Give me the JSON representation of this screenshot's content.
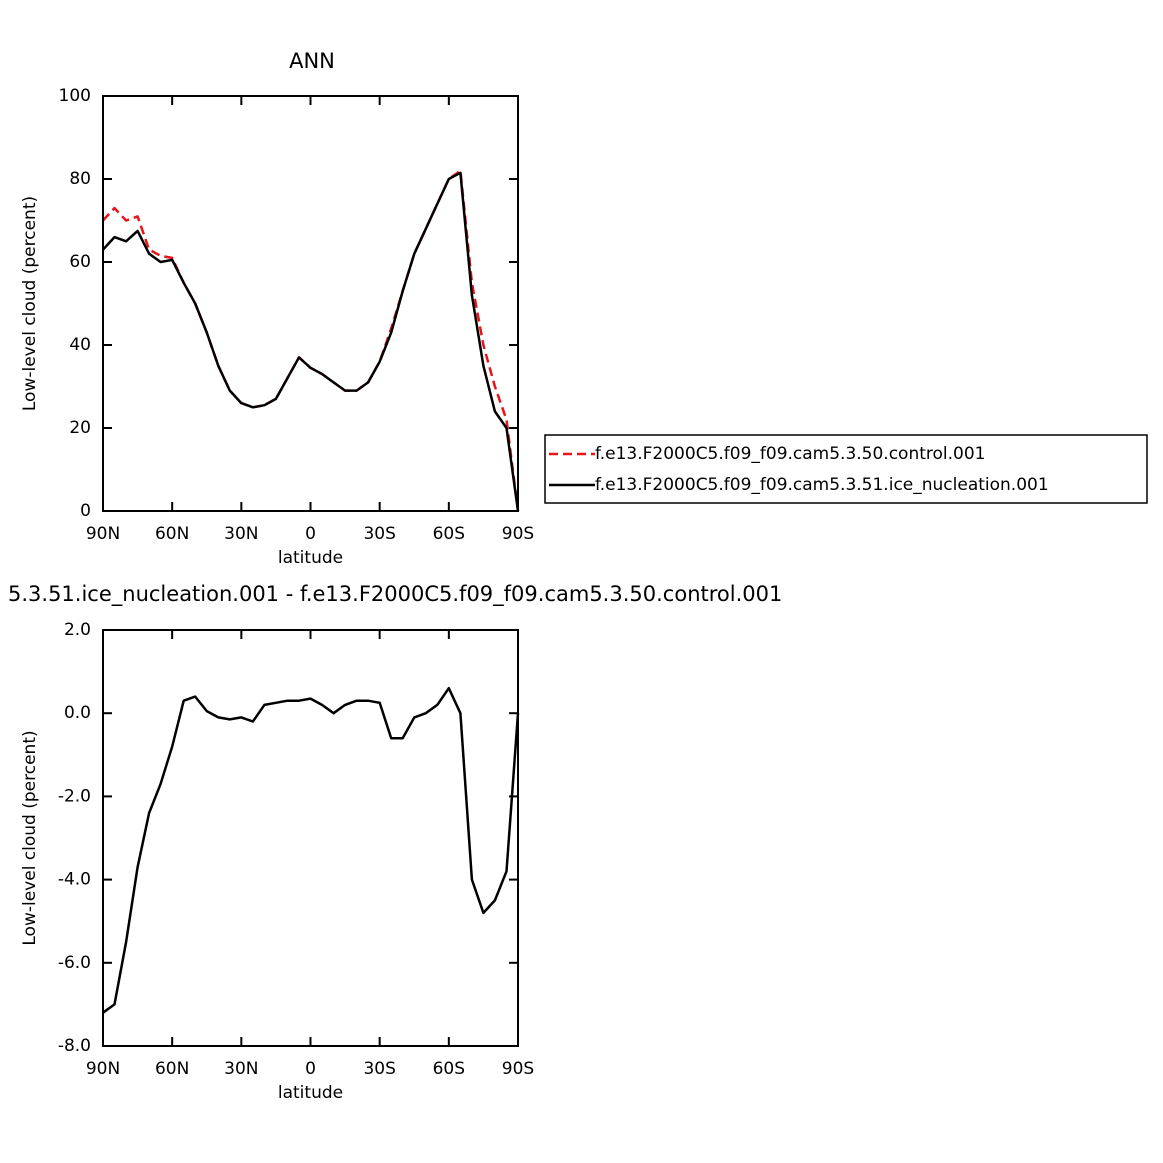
{
  "chart_data": [
    {
      "type": "line",
      "title": "ANN",
      "xlabel": "latitude",
      "ylabel": "Low-level cloud (percent)",
      "x": [
        90,
        85,
        80,
        75,
        70,
        65,
        60,
        55,
        50,
        45,
        40,
        35,
        30,
        25,
        20,
        15,
        10,
        5,
        0,
        -5,
        -10,
        -15,
        -20,
        -25,
        -30,
        -35,
        -40,
        -45,
        -50,
        -55,
        -60,
        -65,
        -70,
        -75,
        -80,
        -85,
        -90
      ],
      "xlim": [
        90,
        -90
      ],
      "xticks": [
        {
          "value": 90,
          "label": "90N"
        },
        {
          "value": 60,
          "label": "60N"
        },
        {
          "value": 30,
          "label": "30N"
        },
        0,
        {
          "value": -30,
          "label": "30S"
        },
        {
          "value": -60,
          "label": "60S"
        },
        {
          "value": -90,
          "label": "90S"
        }
      ],
      "ylim": [
        0,
        100
      ],
      "yticks": [
        0,
        20,
        40,
        60,
        80,
        100
      ],
      "legend": "right",
      "series": [
        {
          "name": "f.e13.F2000C5.f09_f09.cam5.3.50.control.001",
          "color": "#e8141a",
          "dash": true,
          "values": [
            70,
            73,
            70,
            71,
            63,
            61.5,
            61,
            55,
            50,
            43,
            35,
            29,
            26,
            25,
            25.5,
            27,
            32,
            37,
            34.5,
            33,
            31,
            29,
            29,
            31,
            36,
            44,
            53,
            62,
            68,
            74,
            80,
            82,
            55,
            40,
            30,
            22,
            0
          ]
        },
        {
          "name": "f.e13.F2000C5.f09_f09.cam5.3.51.ice_nucleation.001",
          "color": "#000000",
          "dash": false,
          "values": [
            63,
            66,
            65,
            67.5,
            62,
            60,
            60.5,
            55,
            50,
            43,
            35,
            29,
            26,
            25,
            25.5,
            27,
            32,
            37,
            34.5,
            33,
            31,
            29,
            29,
            31,
            36,
            43,
            53,
            62,
            68,
            74,
            80,
            81.5,
            52,
            35,
            24,
            20,
            0
          ]
        }
      ]
    },
    {
      "type": "line",
      "title": "5.3.51.ice_nucleation.001 - f.e13.F2000C5.f09_f09.cam5.3.50.control.001",
      "xlabel": "latitude",
      "ylabel": "Low-level cloud (percent)",
      "x": [
        90,
        85,
        80,
        75,
        70,
        65,
        60,
        55,
        50,
        45,
        40,
        35,
        30,
        25,
        20,
        15,
        10,
        5,
        0,
        -5,
        -10,
        -15,
        -20,
        -25,
        -30,
        -35,
        -40,
        -45,
        -50,
        -55,
        -60,
        -65,
        -70,
        -75,
        -80,
        -85,
        -90
      ],
      "xlim": [
        90,
        -90
      ],
      "xticks": [
        {
          "value": 90,
          "label": "90N"
        },
        {
          "value": 60,
          "label": "60N"
        },
        {
          "value": 30,
          "label": "30N"
        },
        0,
        {
          "value": -30,
          "label": "30S"
        },
        {
          "value": -60,
          "label": "60S"
        },
        {
          "value": -90,
          "label": "90S"
        }
      ],
      "ylim": [
        -8,
        2
      ],
      "yticks": [
        {
          "value": -8,
          "label": "-8.0"
        },
        {
          "value": -6,
          "label": "-6.0"
        },
        {
          "value": -4,
          "label": "-4.0"
        },
        {
          "value": -2,
          "label": "-2.0"
        },
        {
          "value": 0,
          "label": "0.0"
        },
        {
          "value": 2,
          "label": "2.0"
        }
      ],
      "series": [
        {
          "color": "#000000",
          "dash": false,
          "values": [
            -7.2,
            -7.0,
            -5.5,
            -3.7,
            -2.4,
            -1.7,
            -0.8,
            0.3,
            0.4,
            0.05,
            -0.1,
            -0.15,
            -0.1,
            -0.2,
            0.2,
            0.25,
            0.3,
            0.3,
            0.35,
            0.2,
            0.0,
            0.2,
            0.3,
            0.3,
            0.25,
            -0.6,
            -0.6,
            -0.1,
            0.0,
            0.2,
            0.6,
            0.0,
            -4.0,
            -4.8,
            -4.5,
            -3.8,
            0.0
          ]
        }
      ]
    }
  ]
}
